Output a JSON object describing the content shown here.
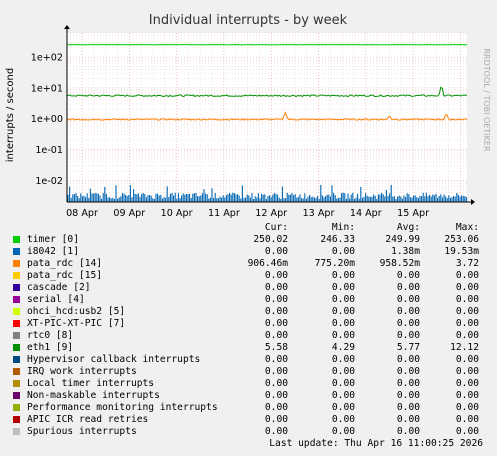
{
  "chart_data": {
    "type": "line",
    "title": "Individual interrupts - by week",
    "ylabel": "interrupts / second",
    "watermark": "RRDTOOL / TOBI OETIKER",
    "yscale": "log",
    "ylim": [
      0.002,
      600
    ],
    "y_ticks": [
      {
        "value": 0.01,
        "label": "1e-02"
      },
      {
        "value": 0.1,
        "label": "1e-01"
      },
      {
        "value": 1,
        "label": "1e+00"
      },
      {
        "value": 10,
        "label": "1e+01"
      },
      {
        "value": 100,
        "label": "1e+02"
      }
    ],
    "x_ticks": [
      "08 Apr",
      "09 Apr",
      "10 Apr",
      "11 Apr",
      "12 Apr",
      "13 Apr",
      "14 Apr",
      "15 Apr"
    ],
    "grid": true,
    "series": [
      {
        "name": "timer [0]",
        "color": "#00cc00",
        "base": 250,
        "noise": 0.01,
        "spikes": []
      },
      {
        "name": "eth1 [9]",
        "color": "#008f00",
        "base": 5.6,
        "noise": 0.06,
        "spikes": [
          {
            "day": 7.6,
            "value": 12.12
          }
        ]
      },
      {
        "name": "pata_rdc [14]",
        "color": "#ff8000",
        "base": 0.95,
        "noise": 0.05,
        "spikes": [
          {
            "day": 4.3,
            "value": 1.6
          },
          {
            "day": 7.7,
            "value": 1.5
          },
          {
            "day": 6.5,
            "value": 1.3
          }
        ]
      },
      {
        "name": "i8042 [1]",
        "color": "#0066b3",
        "type": "impulse",
        "low": 0.0025,
        "high": 0.004,
        "peak": 0.006
      }
    ]
  },
  "legend": {
    "headers": {
      "cur": "Cur:",
      "min": "Min:",
      "avg": "Avg:",
      "max": "Max:"
    },
    "rows": [
      {
        "name": "timer [0]",
        "color": "#00cc00",
        "cur": "250.02",
        "min": "246.33",
        "avg": "249.99",
        "max": "253.06"
      },
      {
        "name": "i8042 [1]",
        "color": "#0066b3",
        "cur": "0.00",
        "min": "0.00",
        "avg": "1.38m",
        "max": "19.53m"
      },
      {
        "name": "pata_rdc [14]",
        "color": "#ff8000",
        "cur": "906.46m",
        "min": "775.20m",
        "avg": "958.52m",
        "max": "3.72"
      },
      {
        "name": "pata_rdc [15]",
        "color": "#ffcc00",
        "cur": "0.00",
        "min": "0.00",
        "avg": "0.00",
        "max": "0.00"
      },
      {
        "name": "cascade [2]",
        "color": "#330099",
        "cur": "0.00",
        "min": "0.00",
        "avg": "0.00",
        "max": "0.00"
      },
      {
        "name": "serial [4]",
        "color": "#990099",
        "cur": "0.00",
        "min": "0.00",
        "avg": "0.00",
        "max": "0.00"
      },
      {
        "name": "ohci_hcd:usb2 [5]",
        "color": "#ccff00",
        "cur": "0.00",
        "min": "0.00",
        "avg": "0.00",
        "max": "0.00"
      },
      {
        "name": "XT-PIC-XT-PIC [7]",
        "color": "#ff0000",
        "cur": "0.00",
        "min": "0.00",
        "avg": "0.00",
        "max": "0.00"
      },
      {
        "name": "rtc0 [8]",
        "color": "#808080",
        "cur": "0.00",
        "min": "0.00",
        "avg": "0.00",
        "max": "0.00"
      },
      {
        "name": "eth1 [9]",
        "color": "#008f00",
        "cur": "5.58",
        "min": "4.29",
        "avg": "5.77",
        "max": "12.12"
      },
      {
        "name": "Hypervisor callback interrupts",
        "color": "#00487d",
        "cur": "0.00",
        "min": "0.00",
        "avg": "0.00",
        "max": "0.00"
      },
      {
        "name": "IRQ work interrupts",
        "color": "#b35a00",
        "cur": "0.00",
        "min": "0.00",
        "avg": "0.00",
        "max": "0.00"
      },
      {
        "name": "Local timer interrupts",
        "color": "#b38f00",
        "cur": "0.00",
        "min": "0.00",
        "avg": "0.00",
        "max": "0.00"
      },
      {
        "name": "Non-maskable interrupts",
        "color": "#6b006b",
        "cur": "0.00",
        "min": "0.00",
        "avg": "0.00",
        "max": "0.00"
      },
      {
        "name": "Performance monitoring interrupts",
        "color": "#8fb300",
        "cur": "0.00",
        "min": "0.00",
        "avg": "0.00",
        "max": "0.00"
      },
      {
        "name": "APIC ICR read retries",
        "color": "#b30000",
        "cur": "0.00",
        "min": "0.00",
        "avg": "0.00",
        "max": "0.00"
      },
      {
        "name": "Spurious interrupts",
        "color": "#bebebe",
        "cur": "0.00",
        "min": "0.00",
        "avg": "0.00",
        "max": "0.00"
      }
    ]
  },
  "footer": {
    "last_update": "Last update: Thu Apr 16 11:00:25 2026"
  }
}
